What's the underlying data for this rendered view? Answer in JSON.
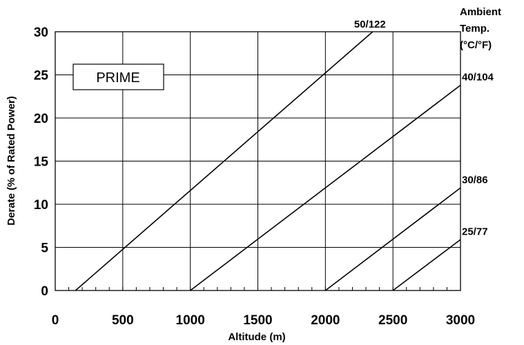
{
  "chart_data": {
    "type": "line",
    "title": "",
    "xlabel": "Altitude (m)",
    "ylabel": "Derate (% of Rated Power)",
    "xlim": [
      0,
      3000
    ],
    "ylim": [
      0,
      30
    ],
    "x_ticks": [
      0,
      500,
      1000,
      1500,
      2000,
      2500,
      3000
    ],
    "y_ticks": [
      0,
      5,
      10,
      15,
      20,
      25,
      30
    ],
    "grid": true,
    "legend_title": [
      "Ambient",
      "Temp.",
      "(°C/°F)"
    ],
    "annotation": "PRIME",
    "series": [
      {
        "name": "50/122",
        "x": [
          150,
          2350
        ],
        "y": [
          0,
          30
        ]
      },
      {
        "name": "40/104",
        "x": [
          1000,
          3000
        ],
        "y": [
          0,
          23.8
        ]
      },
      {
        "name": "30/86",
        "x": [
          2000,
          3000
        ],
        "y": [
          0,
          11.9
        ]
      },
      {
        "name": "25/77",
        "x": [
          2500,
          3000
        ],
        "y": [
          0,
          5.9
        ]
      }
    ]
  }
}
